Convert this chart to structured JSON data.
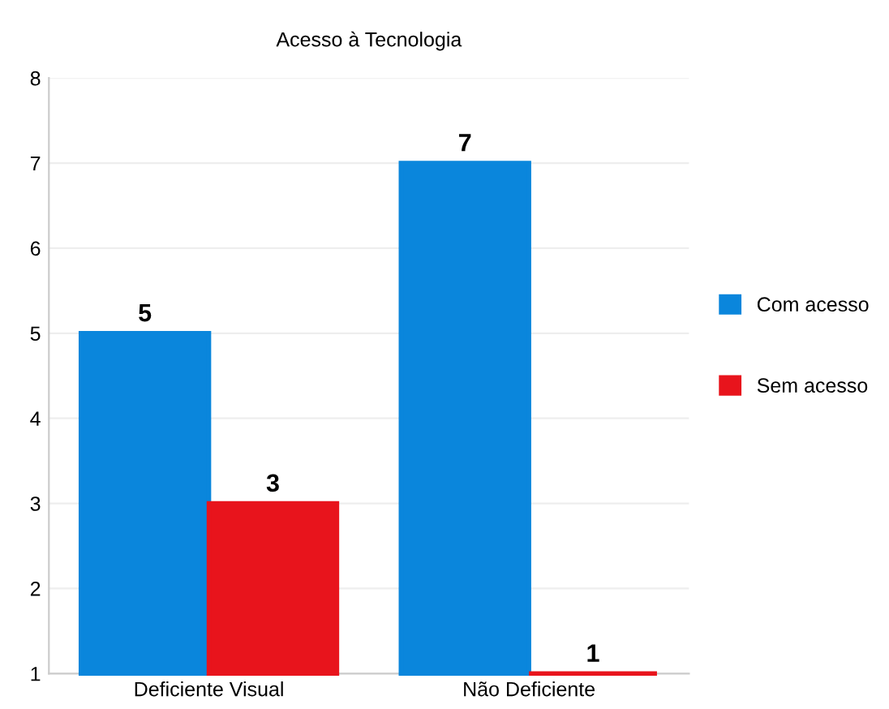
{
  "chart_data": {
    "type": "bar",
    "title": "Acesso à Tecnologia",
    "categories": [
      "Deficiente Visual",
      "Não Deficiente"
    ],
    "series": [
      {
        "name": "Com acesso",
        "color": "#0a86dc",
        "values": [
          5,
          7
        ]
      },
      {
        "name": "Sem acesso",
        "color": "#e8141c",
        "values": [
          3,
          1
        ]
      }
    ],
    "ylim": [
      1,
      8
    ],
    "yticks": [
      1,
      2,
      3,
      4,
      5,
      6,
      7,
      8
    ],
    "grid": "y",
    "legend": "right",
    "data_labels": true
  }
}
